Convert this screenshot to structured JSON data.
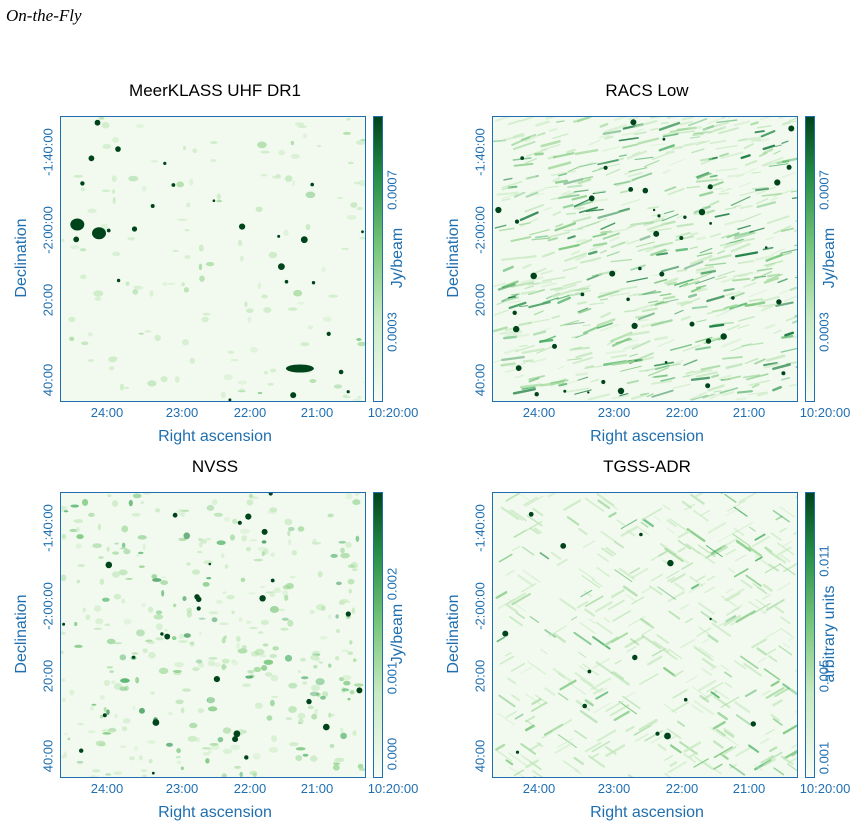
{
  "figure_heading": "On-the-Fly",
  "colors": {
    "axis": "#1f6fb0",
    "map_dark": "#00441b",
    "map_light": "#f2faef"
  },
  "chart_data": [
    {
      "type": "heatmap",
      "title": "MeerKLASS UHF DR1",
      "xlabel": "Right ascension",
      "ylabel": "Declination",
      "xticks": [
        "24:00",
        "23:00",
        "22:00",
        "21:00",
        "10:20:00"
      ],
      "yticks": [
        "-1:40:00",
        "-2:00:00",
        "20:00",
        "40:00"
      ],
      "colorbar_label": "Jy/beam",
      "colorbar_ticks": [
        "0.0003",
        "0.0007"
      ],
      "colormap": "Greens",
      "noise": "low",
      "sources": [
        {
          "ra": "10:24:25",
          "dec": "-2:01:30",
          "size": "large"
        },
        {
          "ra": "10:24:05",
          "dec": "-2:03:40",
          "size": "large"
        },
        {
          "ra": "10:21:00",
          "dec": "-2:37:00",
          "size": "extended"
        }
      ]
    },
    {
      "type": "heatmap",
      "title": "RACS Low",
      "xlabel": "Right ascension",
      "ylabel": "Declination",
      "xticks": [
        "24:00",
        "23:00",
        "22:00",
        "21:00",
        "10:20:00"
      ],
      "yticks": [
        "-1:40:00",
        "-2:00:00",
        "20:00",
        "40:00"
      ],
      "colorbar_label": "Jy/beam",
      "colorbar_ticks": [
        "0.0003",
        "0.0007"
      ],
      "colormap": "Greens",
      "noise": "high"
    },
    {
      "type": "heatmap",
      "title": "NVSS",
      "xlabel": "Right ascension",
      "ylabel": "Declination",
      "xticks": [
        "24:00",
        "23:00",
        "22:00",
        "21:00",
        "10:20:00"
      ],
      "yticks": [
        "-1:40:00",
        "-2:00:00",
        "20:00",
        "40:00"
      ],
      "colorbar_label": "Jy/beam",
      "colorbar_ticks": [
        "0.000",
        "0.001",
        "0.002"
      ],
      "colormap": "Greens",
      "noise": "medium"
    },
    {
      "type": "heatmap",
      "title": "TGSS-ADR",
      "xlabel": "Right ascension",
      "ylabel": "Declination",
      "xticks": [
        "24:00",
        "23:00",
        "22:00",
        "21:00",
        "10:20:00"
      ],
      "yticks": [
        "-1:40:00",
        "-2:00:00",
        "20:00",
        "40:00"
      ],
      "colorbar_label": "arbitrary units",
      "colorbar_ticks": [
        "0.001",
        "0.005",
        "0.011"
      ],
      "colormap": "Greens",
      "noise": "striped"
    }
  ]
}
